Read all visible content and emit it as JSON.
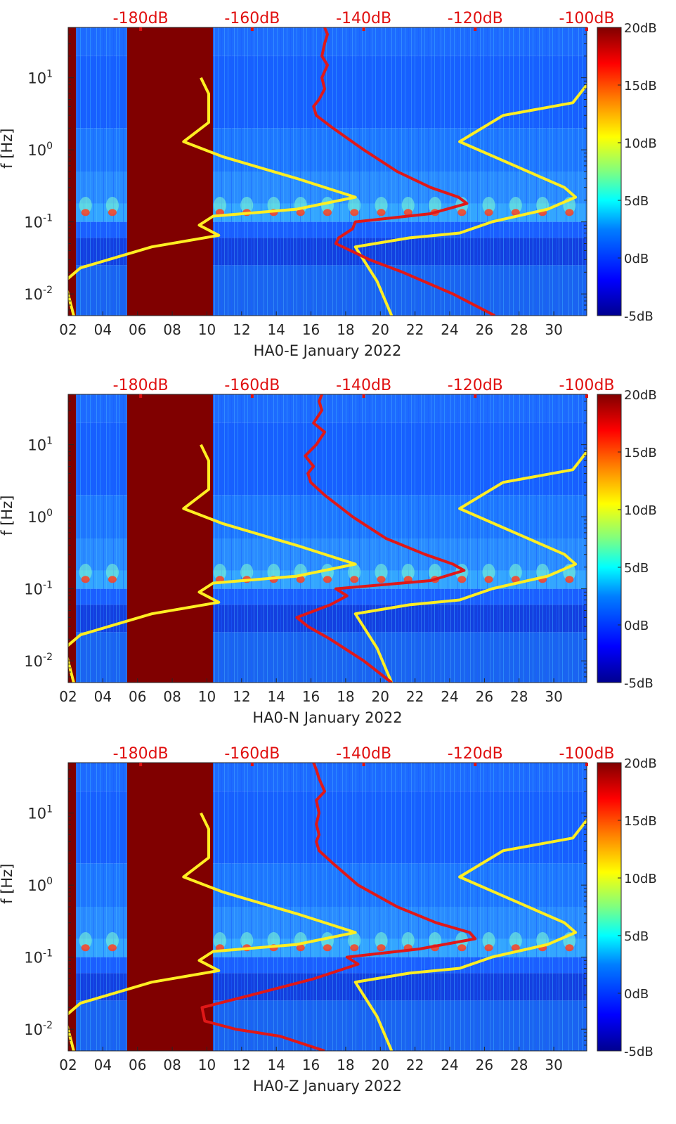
{
  "colors": {
    "background": "#ffffff",
    "axis_text": "#262626",
    "top_axis_text": "#e01010",
    "noise_model_line": "#ffee22",
    "psd_line": "#e01818",
    "masked_block": "#800000",
    "colormap": [
      "#00008f",
      "#0000ff",
      "#00bfff",
      "#7fff80",
      "#ffff00",
      "#ff8000",
      "#ff0000",
      "#800000"
    ]
  },
  "chart_data": [
    {
      "type": "heatmap",
      "panel": "HA0-E",
      "xlabel": "HA0-E January 2022",
      "ylabel": "f [Hz]",
      "x_ticks": [
        "02",
        "04",
        "06",
        "08",
        "10",
        "12",
        "14",
        "16",
        "18",
        "20",
        "22",
        "24",
        "26",
        "28",
        "30"
      ],
      "x_tick_values": [
        2,
        4,
        6,
        8,
        10,
        12,
        14,
        16,
        18,
        20,
        22,
        24,
        26,
        28,
        30
      ],
      "xlim": [
        2,
        31.9
      ],
      "y_scale": "log",
      "ylim": [
        0.005,
        50
      ],
      "y_ticks": [
        {
          "base": "10",
          "exp": "-2",
          "value": 0.01
        },
        {
          "base": "10",
          "exp": "-1",
          "value": 0.1
        },
        {
          "base": "10",
          "exp": "0",
          "value": 1
        },
        {
          "base": "10",
          "exp": "1",
          "value": 10
        }
      ],
      "top_axis_ticks": [
        "-180dB",
        "-160dB",
        "-140dB",
        "-120dB",
        "-100dB"
      ],
      "top_axis_values": [
        -180,
        -160,
        -140,
        -120,
        -100
      ],
      "top_axis_xlim": [
        -193,
        -100
      ],
      "colorbar": {
        "ticks": [
          "-5dB",
          "0dB",
          "5dB",
          "10dB",
          "15dB",
          "20dB"
        ],
        "values": [
          -5,
          0,
          5,
          10,
          15,
          20
        ],
        "range": [
          -5,
          20
        ]
      },
      "masked_days": [
        [
          2,
          2.45
        ],
        [
          5.4,
          10.35
        ]
      ],
      "series": [
        {
          "kind": "noise-model-low",
          "points": [
            [
              0.005,
              -192.0
            ],
            [
              0.015,
              -193.6
            ],
            [
              0.023,
              -190.8
            ],
            [
              0.045,
              -178.0
            ],
            [
              0.065,
              -166.0
            ],
            [
              0.09,
              -169.5
            ],
            [
              0.12,
              -167.0
            ],
            [
              0.15,
              -152.0
            ],
            [
              0.22,
              -141.5
            ],
            [
              0.4,
              -152.0
            ],
            [
              0.8,
              -165.2
            ],
            [
              1.3,
              -172.3
            ],
            [
              2.4,
              -167.8
            ],
            [
              6.0,
              -167.8
            ],
            [
              10.0,
              -169.2
            ]
          ]
        },
        {
          "kind": "noise-model-high",
          "points": [
            [
              0.005,
              -135.0
            ],
            [
              0.015,
              -137.6
            ],
            [
              0.045,
              -141.5
            ],
            [
              0.06,
              -131.8
            ],
            [
              0.07,
              -122.8
            ],
            [
              0.1,
              -117.0
            ],
            [
              0.15,
              -107.0
            ],
            [
              0.22,
              -102.0
            ],
            [
              0.3,
              -104.0
            ],
            [
              1.3,
              -122.8
            ],
            [
              3.0,
              -115.0
            ],
            [
              4.5,
              -102.5
            ],
            [
              10.0,
              -99.0
            ]
          ]
        },
        {
          "kind": "psd",
          "points": [
            [
              0.005,
              -116.5
            ],
            [
              0.01,
              -124.0
            ],
            [
              0.02,
              -133.0
            ],
            [
              0.03,
              -139.0
            ],
            [
              0.05,
              -145.0
            ],
            [
              0.06,
              -144.5
            ],
            [
              0.08,
              -142.0
            ],
            [
              0.1,
              -141.5
            ],
            [
              0.13,
              -128.0
            ],
            [
              0.18,
              -121.5
            ],
            [
              0.22,
              -123.0
            ],
            [
              0.3,
              -128.0
            ],
            [
              0.5,
              -134.0
            ],
            [
              1.0,
              -140.0
            ],
            [
              2.0,
              -145.5
            ],
            [
              3.0,
              -148.5
            ],
            [
              4.0,
              -149.0
            ],
            [
              5.0,
              -148.0
            ],
            [
              7.0,
              -147.0
            ],
            [
              10.0,
              -147.5
            ],
            [
              15.0,
              -146.5
            ],
            [
              20.0,
              -147.5
            ],
            [
              30.0,
              -147.0
            ],
            [
              40.0,
              -146.5
            ],
            [
              50.0,
              -147.0
            ]
          ]
        }
      ]
    },
    {
      "type": "heatmap",
      "panel": "HA0-N",
      "xlabel": "HA0-N January 2022",
      "ylabel": "f [Hz]",
      "x_ticks": [
        "02",
        "04",
        "06",
        "08",
        "10",
        "12",
        "14",
        "16",
        "18",
        "20",
        "22",
        "24",
        "26",
        "28",
        "30"
      ],
      "x_tick_values": [
        2,
        4,
        6,
        8,
        10,
        12,
        14,
        16,
        18,
        20,
        22,
        24,
        26,
        28,
        30
      ],
      "xlim": [
        2,
        31.9
      ],
      "y_scale": "log",
      "ylim": [
        0.005,
        50
      ],
      "y_ticks": [
        {
          "base": "10",
          "exp": "-2",
          "value": 0.01
        },
        {
          "base": "10",
          "exp": "-1",
          "value": 0.1
        },
        {
          "base": "10",
          "exp": "0",
          "value": 1
        },
        {
          "base": "10",
          "exp": "1",
          "value": 10
        }
      ],
      "top_axis_ticks": [
        "-180dB",
        "-160dB",
        "-140dB",
        "-120dB",
        "-100dB"
      ],
      "top_axis_values": [
        -180,
        -160,
        -140,
        -120,
        -100
      ],
      "top_axis_xlim": [
        -193,
        -100
      ],
      "colorbar": {
        "ticks": [
          "-5dB",
          "0dB",
          "5dB",
          "10dB",
          "15dB",
          "20dB"
        ],
        "values": [
          -5,
          0,
          5,
          10,
          15,
          20
        ],
        "range": [
          -5,
          20
        ]
      },
      "masked_days": [
        [
          2,
          2.45
        ],
        [
          5.4,
          10.35
        ]
      ],
      "series": [
        {
          "kind": "noise-model-low",
          "points": [
            [
              0.005,
              -192.0
            ],
            [
              0.015,
              -193.6
            ],
            [
              0.023,
              -190.8
            ],
            [
              0.045,
              -178.0
            ],
            [
              0.065,
              -166.0
            ],
            [
              0.09,
              -169.5
            ],
            [
              0.12,
              -167.0
            ],
            [
              0.15,
              -152.0
            ],
            [
              0.22,
              -141.5
            ],
            [
              0.4,
              -152.0
            ],
            [
              0.8,
              -165.2
            ],
            [
              1.3,
              -172.3
            ],
            [
              2.4,
              -167.8
            ],
            [
              6.0,
              -167.8
            ],
            [
              10.0,
              -169.2
            ]
          ]
        },
        {
          "kind": "noise-model-high",
          "points": [
            [
              0.005,
              -135.0
            ],
            [
              0.015,
              -137.6
            ],
            [
              0.045,
              -141.5
            ],
            [
              0.06,
              -131.8
            ],
            [
              0.07,
              -122.8
            ],
            [
              0.1,
              -117.0
            ],
            [
              0.15,
              -107.0
            ],
            [
              0.22,
              -102.0
            ],
            [
              0.3,
              -104.0
            ],
            [
              1.3,
              -122.8
            ],
            [
              3.0,
              -115.0
            ],
            [
              4.5,
              -102.5
            ],
            [
              10.0,
              -99.0
            ]
          ]
        },
        {
          "kind": "psd",
          "points": [
            [
              0.005,
              -135.0
            ],
            [
              0.01,
              -140.0
            ],
            [
              0.02,
              -146.0
            ],
            [
              0.03,
              -150.0
            ],
            [
              0.04,
              -152.0
            ],
            [
              0.06,
              -146.0
            ],
            [
              0.08,
              -143.0
            ],
            [
              0.1,
              -145.0
            ],
            [
              0.13,
              -128.0
            ],
            [
              0.18,
              -122.0
            ],
            [
              0.22,
              -124.0
            ],
            [
              0.3,
              -129.0
            ],
            [
              0.5,
              -136.0
            ],
            [
              1.0,
              -142.0
            ],
            [
              2.0,
              -147.0
            ],
            [
              3.0,
              -149.5
            ],
            [
              4.0,
              -150.0
            ],
            [
              5.0,
              -149.0
            ],
            [
              7.0,
              -150.5
            ],
            [
              10.0,
              -148.5
            ],
            [
              15.0,
              -147.0
            ],
            [
              20.0,
              -149.0
            ],
            [
              30.0,
              -147.5
            ],
            [
              40.0,
              -148.0
            ],
            [
              50.0,
              -147.5
            ]
          ]
        }
      ]
    },
    {
      "type": "heatmap",
      "panel": "HA0-Z",
      "xlabel": "HA0-Z January 2022",
      "ylabel": "f [Hz]",
      "x_ticks": [
        "02",
        "04",
        "06",
        "08",
        "10",
        "12",
        "14",
        "16",
        "18",
        "20",
        "22",
        "24",
        "26",
        "28",
        "30"
      ],
      "x_tick_values": [
        2,
        4,
        6,
        8,
        10,
        12,
        14,
        16,
        18,
        20,
        22,
        24,
        26,
        28,
        30
      ],
      "xlim": [
        2,
        31.9
      ],
      "y_scale": "log",
      "ylim": [
        0.005,
        50
      ],
      "y_ticks": [
        {
          "base": "10",
          "exp": "-2",
          "value": 0.01
        },
        {
          "base": "10",
          "exp": "-1",
          "value": 0.1
        },
        {
          "base": "10",
          "exp": "0",
          "value": 1
        },
        {
          "base": "10",
          "exp": "1",
          "value": 10
        }
      ],
      "top_axis_ticks": [
        "-180dB",
        "-160dB",
        "-140dB",
        "-120dB",
        "-100dB"
      ],
      "top_axis_values": [
        -180,
        -160,
        -140,
        -120,
        -100
      ],
      "top_axis_xlim": [
        -193,
        -100
      ],
      "colorbar": {
        "ticks": [
          "-5dB",
          "0dB",
          "5dB",
          "10dB",
          "15dB",
          "20dB"
        ],
        "values": [
          -5,
          0,
          5,
          10,
          15,
          20
        ],
        "range": [
          -5,
          20
        ]
      },
      "masked_days": [
        [
          2,
          2.45
        ],
        [
          5.4,
          10.35
        ]
      ],
      "series": [
        {
          "kind": "noise-model-low",
          "points": [
            [
              0.005,
              -192.0
            ],
            [
              0.015,
              -193.6
            ],
            [
              0.023,
              -190.8
            ],
            [
              0.045,
              -178.0
            ],
            [
              0.065,
              -166.0
            ],
            [
              0.09,
              -169.5
            ],
            [
              0.12,
              -167.0
            ],
            [
              0.15,
              -152.0
            ],
            [
              0.22,
              -141.5
            ],
            [
              0.4,
              -152.0
            ],
            [
              0.8,
              -165.2
            ],
            [
              1.3,
              -172.3
            ],
            [
              2.4,
              -167.8
            ],
            [
              6.0,
              -167.8
            ],
            [
              10.0,
              -169.2
            ]
          ]
        },
        {
          "kind": "noise-model-high",
          "points": [
            [
              0.005,
              -135.0
            ],
            [
              0.015,
              -137.6
            ],
            [
              0.045,
              -141.5
            ],
            [
              0.06,
              -131.8
            ],
            [
              0.07,
              -122.8
            ],
            [
              0.1,
              -117.0
            ],
            [
              0.15,
              -107.0
            ],
            [
              0.22,
              -102.0
            ],
            [
              0.3,
              -104.0
            ],
            [
              1.3,
              -122.8
            ],
            [
              3.0,
              -115.0
            ],
            [
              4.5,
              -102.5
            ],
            [
              10.0,
              -99.0
            ]
          ]
        },
        {
          "kind": "psd",
          "points": [
            [
              0.005,
              -147.0
            ],
            [
              0.008,
              -155.0
            ],
            [
              0.01,
              -163.0
            ],
            [
              0.013,
              -168.5
            ],
            [
              0.02,
              -169.0
            ],
            [
              0.03,
              -160.0
            ],
            [
              0.05,
              -149.0
            ],
            [
              0.08,
              -141.0
            ],
            [
              0.1,
              -143.0
            ],
            [
              0.13,
              -130.0
            ],
            [
              0.18,
              -120.0
            ],
            [
              0.22,
              -121.0
            ],
            [
              0.3,
              -127.0
            ],
            [
              0.5,
              -134.0
            ],
            [
              1.0,
              -141.0
            ],
            [
              2.0,
              -145.5
            ],
            [
              3.0,
              -148.0
            ],
            [
              4.0,
              -148.5
            ],
            [
              5.0,
              -148.0
            ],
            [
              7.0,
              -148.5
            ],
            [
              10.0,
              -148.0
            ],
            [
              15.0,
              -148.5
            ],
            [
              20.0,
              -147.0
            ],
            [
              30.0,
              -148.0
            ],
            [
              40.0,
              -148.5
            ],
            [
              50.0,
              -149.0
            ]
          ]
        }
      ]
    }
  ]
}
